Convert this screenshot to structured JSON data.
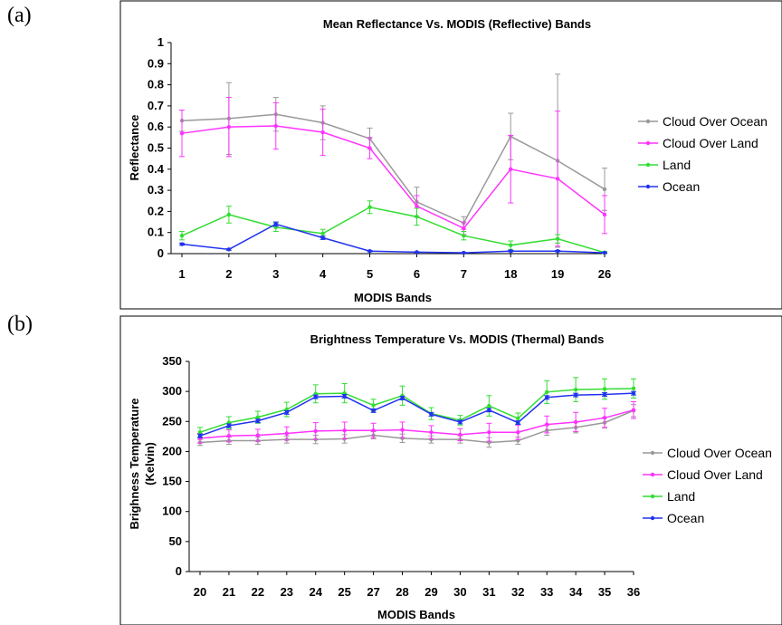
{
  "panels": [
    {
      "letter": "(a)"
    },
    {
      "letter": "(b)"
    }
  ],
  "chart_data": [
    {
      "type": "line",
      "title": "Mean Reflectance Vs. MODIS (Reflective) Bands",
      "xlabel": "MODIS Bands",
      "ylabel": "Reflectance",
      "ylim": [
        0,
        1
      ],
      "yticks": [
        "0",
        "0.1",
        "0.2",
        "0.3",
        "0.4",
        "0.5",
        "0.6",
        "0.7",
        "0.8",
        "0.9",
        "1"
      ],
      "categories": [
        "1",
        "2",
        "3",
        "4",
        "5",
        "6",
        "7",
        "18",
        "19",
        "26"
      ],
      "grid": false,
      "legend_position": "right",
      "series": [
        {
          "name": "Cloud Over Ocean",
          "color": "#999999",
          "values": [
            0.63,
            0.64,
            0.66,
            0.62,
            0.545,
            0.245,
            0.145,
            0.555,
            0.44,
            0.305
          ],
          "errors": [
            0.05,
            0.17,
            0.08,
            0.08,
            0.05,
            0.07,
            0.03,
            0.11,
            0.41,
            0.1
          ]
        },
        {
          "name": "Cloud Over Land",
          "color": "#ff33ff",
          "values": [
            0.57,
            0.6,
            0.605,
            0.575,
            0.5,
            0.225,
            0.12,
            0.4,
            0.355,
            0.185
          ],
          "errors": [
            0.11,
            0.14,
            0.11,
            0.11,
            0.05,
            0.05,
            0.03,
            0.16,
            0.32,
            0.09
          ]
        },
        {
          "name": "Land",
          "color": "#33dd33",
          "values": [
            0.085,
            0.185,
            0.125,
            0.095,
            0.22,
            0.175,
            0.085,
            0.04,
            0.07,
            0.005
          ],
          "errors": [
            0.02,
            0.04,
            0.02,
            0.02,
            0.03,
            0.04,
            0.02,
            0.02,
            0.02,
            0.005
          ]
        },
        {
          "name": "Ocean",
          "color": "#2233ee",
          "values": [
            0.045,
            0.02,
            0.14,
            0.075,
            0.012,
            0.007,
            0.004,
            0.012,
            0.012,
            0.004
          ],
          "errors": [
            0.005,
            0.004,
            0.01,
            0.008,
            0.003,
            0.002,
            0.002,
            0.003,
            0.003,
            0.002
          ]
        }
      ]
    },
    {
      "type": "line",
      "title": "Brightness Temperature Vs. MODIS (Thermal) Bands",
      "xlabel": "MODIS Bands",
      "ylabel": "Brighness Temperature",
      "ylabel2": "(Kelvin)",
      "ylim": [
        0,
        350
      ],
      "yticks": [
        "0",
        "50",
        "100",
        "150",
        "200",
        "250",
        "300",
        "350"
      ],
      "categories": [
        "20",
        "21",
        "22",
        "23",
        "24",
        "25",
        "27",
        "28",
        "29",
        "30",
        "31",
        "32",
        "33",
        "34",
        "35",
        "36"
      ],
      "grid": false,
      "legend_position": "right",
      "series": [
        {
          "name": "Cloud Over Ocean",
          "color": "#999999",
          "values": [
            215,
            218,
            218,
            220,
            220,
            221,
            227,
            222,
            220,
            220,
            215,
            218,
            235,
            240,
            248,
            268
          ],
          "errors": [
            5,
            6,
            6,
            6,
            7,
            7,
            6,
            7,
            6,
            6,
            8,
            6,
            8,
            9,
            9,
            10
          ]
        },
        {
          "name": "Cloud Over Land",
          "color": "#ff33ff",
          "values": [
            222,
            226,
            227,
            230,
            234,
            235,
            235,
            236,
            232,
            228,
            232,
            232,
            245,
            249,
            256,
            269
          ],
          "errors": [
            8,
            10,
            10,
            11,
            14,
            14,
            12,
            13,
            11,
            10,
            15,
            12,
            14,
            16,
            16,
            14
          ]
        },
        {
          "name": "Land",
          "color": "#33dd33",
          "values": [
            232,
            248,
            257,
            270,
            296,
            297,
            277,
            293,
            263,
            252,
            276,
            255,
            299,
            303,
            304,
            305
          ],
          "errors": [
            8,
            10,
            10,
            12,
            15,
            16,
            10,
            16,
            10,
            8,
            17,
            9,
            19,
            20,
            17,
            16
          ]
        },
        {
          "name": "Ocean",
          "color": "#2233ee",
          "values": [
            226,
            243,
            251,
            265,
            291,
            292,
            268,
            289,
            262,
            249,
            269,
            248,
            290,
            294,
            295,
            297
          ],
          "errors": [
            3,
            3,
            3,
            3,
            3,
            3,
            3,
            3,
            3,
            3,
            3,
            3,
            3,
            3,
            3,
            3
          ]
        }
      ]
    }
  ]
}
